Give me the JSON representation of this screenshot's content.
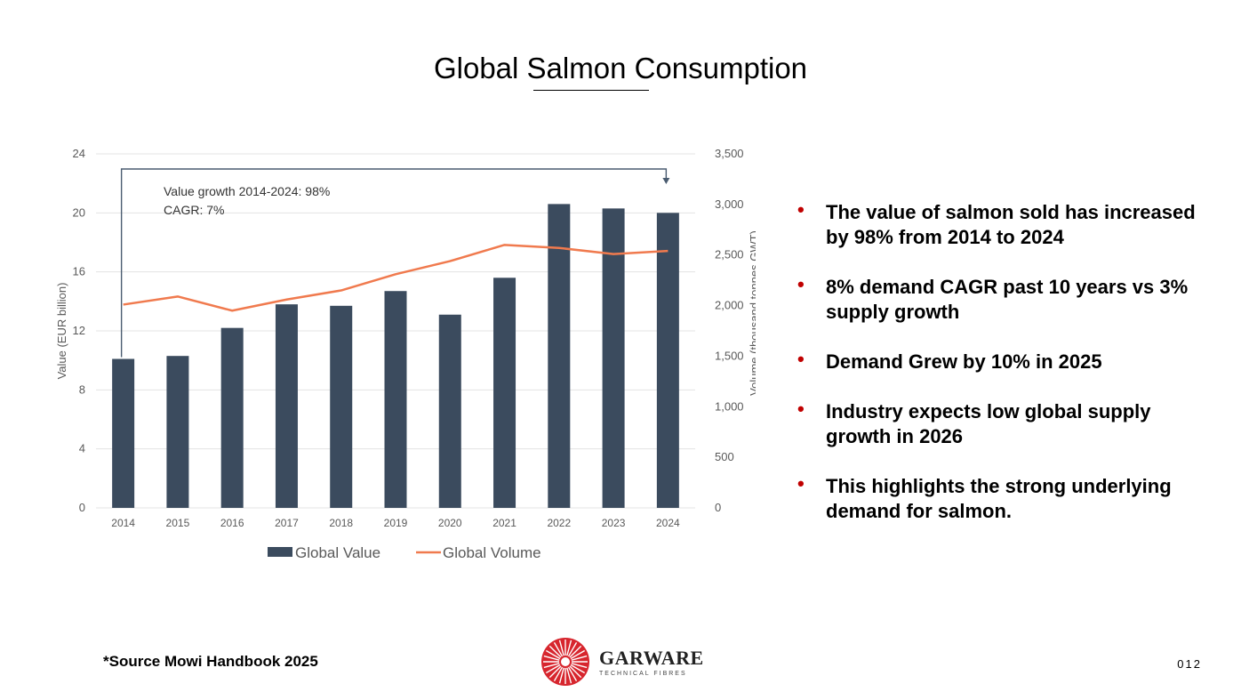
{
  "page": {
    "title": "Global Salmon Consumption",
    "source": "*Source Mowi Handbook 2025",
    "page_number": "012"
  },
  "logo": {
    "name": "GARWARE",
    "tagline": "TECHNICAL FIBRES"
  },
  "bullets": [
    "The value of salmon sold has increased by 98% from 2014 to 2024",
    "8% demand CAGR past 10 years vs 3% supply growth",
    "Demand Grew by 10% in 2025",
    "Industry expects low global supply growth in 2026",
    "This highlights the strong underlying demand for salmon."
  ],
  "colors": {
    "bar": "#3b4b5e",
    "line": "#f07a4e",
    "bullet": "#c00000",
    "grid": "#e3e3e3",
    "axis_text": "#595959"
  },
  "chart_data": {
    "type": "bar",
    "title": "",
    "categories": [
      "2014",
      "2015",
      "2016",
      "2017",
      "2018",
      "2019",
      "2020",
      "2021",
      "2022",
      "2023",
      "2024"
    ],
    "series": [
      {
        "name": "Global Value",
        "type": "bar",
        "axis": "left",
        "values": [
          10.1,
          10.3,
          12.2,
          13.8,
          13.7,
          14.7,
          13.1,
          15.6,
          20.6,
          20.3,
          20.0
        ]
      },
      {
        "name": "Global Volume",
        "type": "line",
        "axis": "right",
        "values": [
          2010,
          2090,
          1950,
          2060,
          2150,
          2310,
          2440,
          2600,
          2570,
          2510,
          2540
        ]
      }
    ],
    "ylabel": "Value (EUR billion)",
    "ylim": [
      0,
      24
    ],
    "yticks": [
      "0",
      "4",
      "8",
      "12",
      "16",
      "20",
      "24"
    ],
    "y2label": "Volume (thousand tonnes GWT)",
    "y2lim": [
      0,
      3500
    ],
    "y2ticks": [
      "0",
      "500",
      "1,000",
      "1,500",
      "2,000",
      "2,500",
      "3,000",
      "3,500"
    ],
    "annotation": {
      "lines": [
        "Value growth 2014-2024: 98%",
        "CAGR: 7%"
      ],
      "from": "2014",
      "to": "2024"
    },
    "legend": "bottom-center",
    "grid": true
  }
}
